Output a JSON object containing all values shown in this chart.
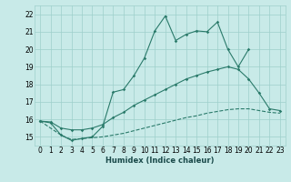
{
  "xlabel": "Humidex (Indice chaleur)",
  "line_color": "#2a7a6a",
  "bg_color": "#c8eae8",
  "grid_color": "#9ecfcb",
  "ylim": [
    14.5,
    22.5
  ],
  "xlim": [
    -0.5,
    23.5
  ],
  "yticks": [
    15,
    16,
    17,
    18,
    19,
    20,
    21,
    22
  ],
  "xticks": [
    0,
    1,
    2,
    3,
    4,
    5,
    6,
    7,
    8,
    9,
    10,
    11,
    12,
    13,
    14,
    15,
    16,
    17,
    18,
    19,
    20,
    21,
    22,
    23
  ],
  "line1_x": [
    0,
    1,
    2,
    3,
    4,
    5,
    6,
    7,
    8,
    9,
    10,
    11,
    12,
    13,
    14,
    15,
    16,
    17,
    18,
    19,
    20
  ],
  "line1_y": [
    15.9,
    15.8,
    15.1,
    14.8,
    14.9,
    15.0,
    15.6,
    17.55,
    17.7,
    18.5,
    19.5,
    21.05,
    21.9,
    20.5,
    20.85,
    21.05,
    21.0,
    21.55,
    20.0,
    19.0,
    20.0
  ],
  "line2_x": [
    0,
    1,
    2,
    3,
    4,
    5,
    6,
    7,
    8,
    9,
    10,
    11,
    12,
    13,
    14,
    15,
    16,
    17,
    18,
    19,
    20,
    21,
    22,
    23
  ],
  "line2_y": [
    15.9,
    15.85,
    15.5,
    15.4,
    15.4,
    15.5,
    15.7,
    16.1,
    16.4,
    16.8,
    17.1,
    17.4,
    17.7,
    18.0,
    18.3,
    18.5,
    18.7,
    18.85,
    19.0,
    18.85,
    18.3,
    17.5,
    16.6,
    16.5
  ],
  "line3_x": [
    0,
    1,
    2,
    3,
    4,
    5,
    6,
    7,
    8,
    9,
    10,
    11,
    12,
    13,
    14,
    15,
    16,
    17,
    18,
    19,
    20,
    21,
    22,
    23
  ],
  "line3_y": [
    15.9,
    15.5,
    15.1,
    14.85,
    14.9,
    14.95,
    15.0,
    15.1,
    15.2,
    15.35,
    15.5,
    15.65,
    15.8,
    15.95,
    16.1,
    16.2,
    16.35,
    16.45,
    16.55,
    16.6,
    16.6,
    16.5,
    16.4,
    16.35
  ]
}
